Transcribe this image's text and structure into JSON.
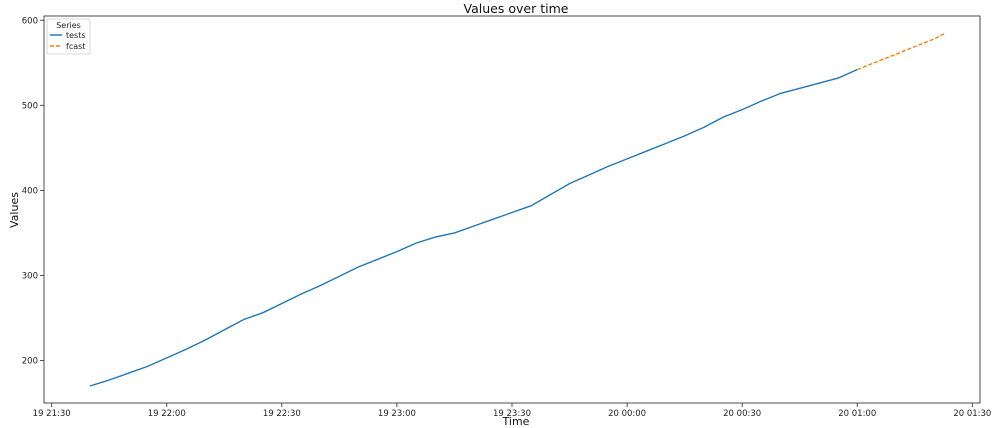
{
  "chart_data": {
    "type": "line",
    "title": "Values over time",
    "xlabel": "Time",
    "ylabel": "Values",
    "legend": {
      "title": "Series",
      "placement": "top-left"
    },
    "grid": false,
    "x_ticks": [
      "19 21:30",
      "19 22:00",
      "19 22:30",
      "19 23:00",
      "19 23:30",
      "20 00:00",
      "20 00:30",
      "20 01:00",
      "20 01:30"
    ],
    "x_tick_times": [
      "2024-01-19T21:30",
      "2024-01-19T22:00",
      "2024-01-19T22:30",
      "2024-01-19T23:00",
      "2024-01-19T23:30",
      "2024-01-20T00:00",
      "2024-01-20T00:30",
      "2024-01-20T01:00",
      "2024-01-20T01:30"
    ],
    "xlim": [
      "2024-01-19T21:28",
      "2024-01-20T01:32"
    ],
    "y_ticks": [
      200,
      300,
      400,
      500,
      600
    ],
    "ylim": [
      150,
      605
    ],
    "series": [
      {
        "name": "tests",
        "color": "#1f77b4",
        "style": "solid",
        "x": [
          "2024-01-19T21:40",
          "2024-01-19T21:45",
          "2024-01-19T21:50",
          "2024-01-19T21:55",
          "2024-01-19T22:00",
          "2024-01-19T22:05",
          "2024-01-19T22:10",
          "2024-01-19T22:15",
          "2024-01-19T22:20",
          "2024-01-19T22:25",
          "2024-01-19T22:30",
          "2024-01-19T22:35",
          "2024-01-19T22:40",
          "2024-01-19T22:45",
          "2024-01-19T22:50",
          "2024-01-19T22:55",
          "2024-01-19T23:00",
          "2024-01-19T23:05",
          "2024-01-19T23:10",
          "2024-01-19T23:15",
          "2024-01-19T23:20",
          "2024-01-19T23:25",
          "2024-01-19T23:30",
          "2024-01-19T23:35",
          "2024-01-19T23:40",
          "2024-01-19T23:45",
          "2024-01-19T23:50",
          "2024-01-19T23:55",
          "2024-01-20T00:00",
          "2024-01-20T00:05",
          "2024-01-20T00:10",
          "2024-01-20T00:15",
          "2024-01-20T00:20",
          "2024-01-20T00:25",
          "2024-01-20T00:30",
          "2024-01-20T00:35",
          "2024-01-20T00:40",
          "2024-01-20T00:45",
          "2024-01-20T00:50",
          "2024-01-20T00:55",
          "2024-01-20T01:00"
        ],
        "values": [
          170,
          177,
          185,
          193,
          203,
          213,
          224,
          236,
          248,
          256,
          267,
          278,
          288,
          299,
          310,
          319,
          328,
          338,
          345,
          350,
          358,
          366,
          374,
          382,
          395,
          408,
          418,
          428,
          437,
          446,
          455,
          464,
          474,
          486,
          495,
          505,
          514,
          520,
          526,
          532,
          542
        ]
      },
      {
        "name": "fcast",
        "color": "#ff7f0e",
        "style": "dashed",
        "x": [
          "2024-01-20T01:00",
          "2024-01-20T01:05",
          "2024-01-20T01:10",
          "2024-01-20T01:15",
          "2024-01-20T01:20",
          "2024-01-20T01:23"
        ],
        "values": [
          542,
          551,
          560,
          569,
          578,
          585
        ]
      }
    ]
  }
}
